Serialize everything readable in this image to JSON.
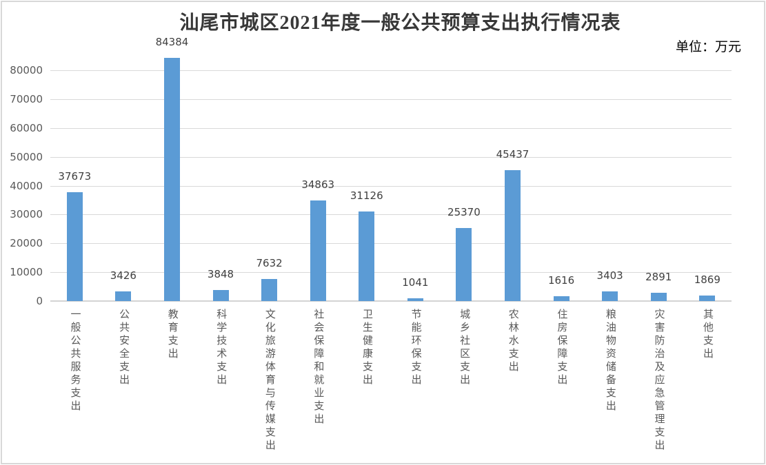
{
  "chart_data": {
    "type": "bar",
    "title": "汕尾市城区2021年度一般公共预算支出执行情况表",
    "unit_label": "单位：万元",
    "categories": [
      "一般公共服务支出",
      "公共安全支出",
      "教育支出",
      "科学技术支出",
      "文化旅游体育与传媒支出",
      "社会保障和就业支出",
      "卫生健康支出",
      "节能环保支出",
      "城乡社区支出",
      "农林水支出",
      "住房保障支出",
      "粮油物资储备支出",
      "灾害防治及应急管理支出",
      "其他支出"
    ],
    "values": [
      37673,
      3426,
      84384,
      3848,
      7632,
      34863,
      31126,
      1041,
      25370,
      45437,
      1616,
      3403,
      2891,
      1869
    ],
    "xlabel": "",
    "ylabel": "",
    "ylim": [
      0,
      80000
    ],
    "ytick_interval": 10000,
    "yticks": [
      0,
      10000,
      20000,
      30000,
      40000,
      50000,
      60000,
      70000,
      80000
    ],
    "grid": true,
    "legend": false,
    "data_labels": true,
    "colors": {
      "bar": "#5B9BD5",
      "gridline": "#D9D9D9",
      "axis_line": "#D3D3D3",
      "tick_label": "#595959",
      "data_label": "#3F3F3F",
      "title": "#383838",
      "unit": "#000000",
      "border": "#D8D8D8",
      "background": "#FFFFFF"
    }
  }
}
